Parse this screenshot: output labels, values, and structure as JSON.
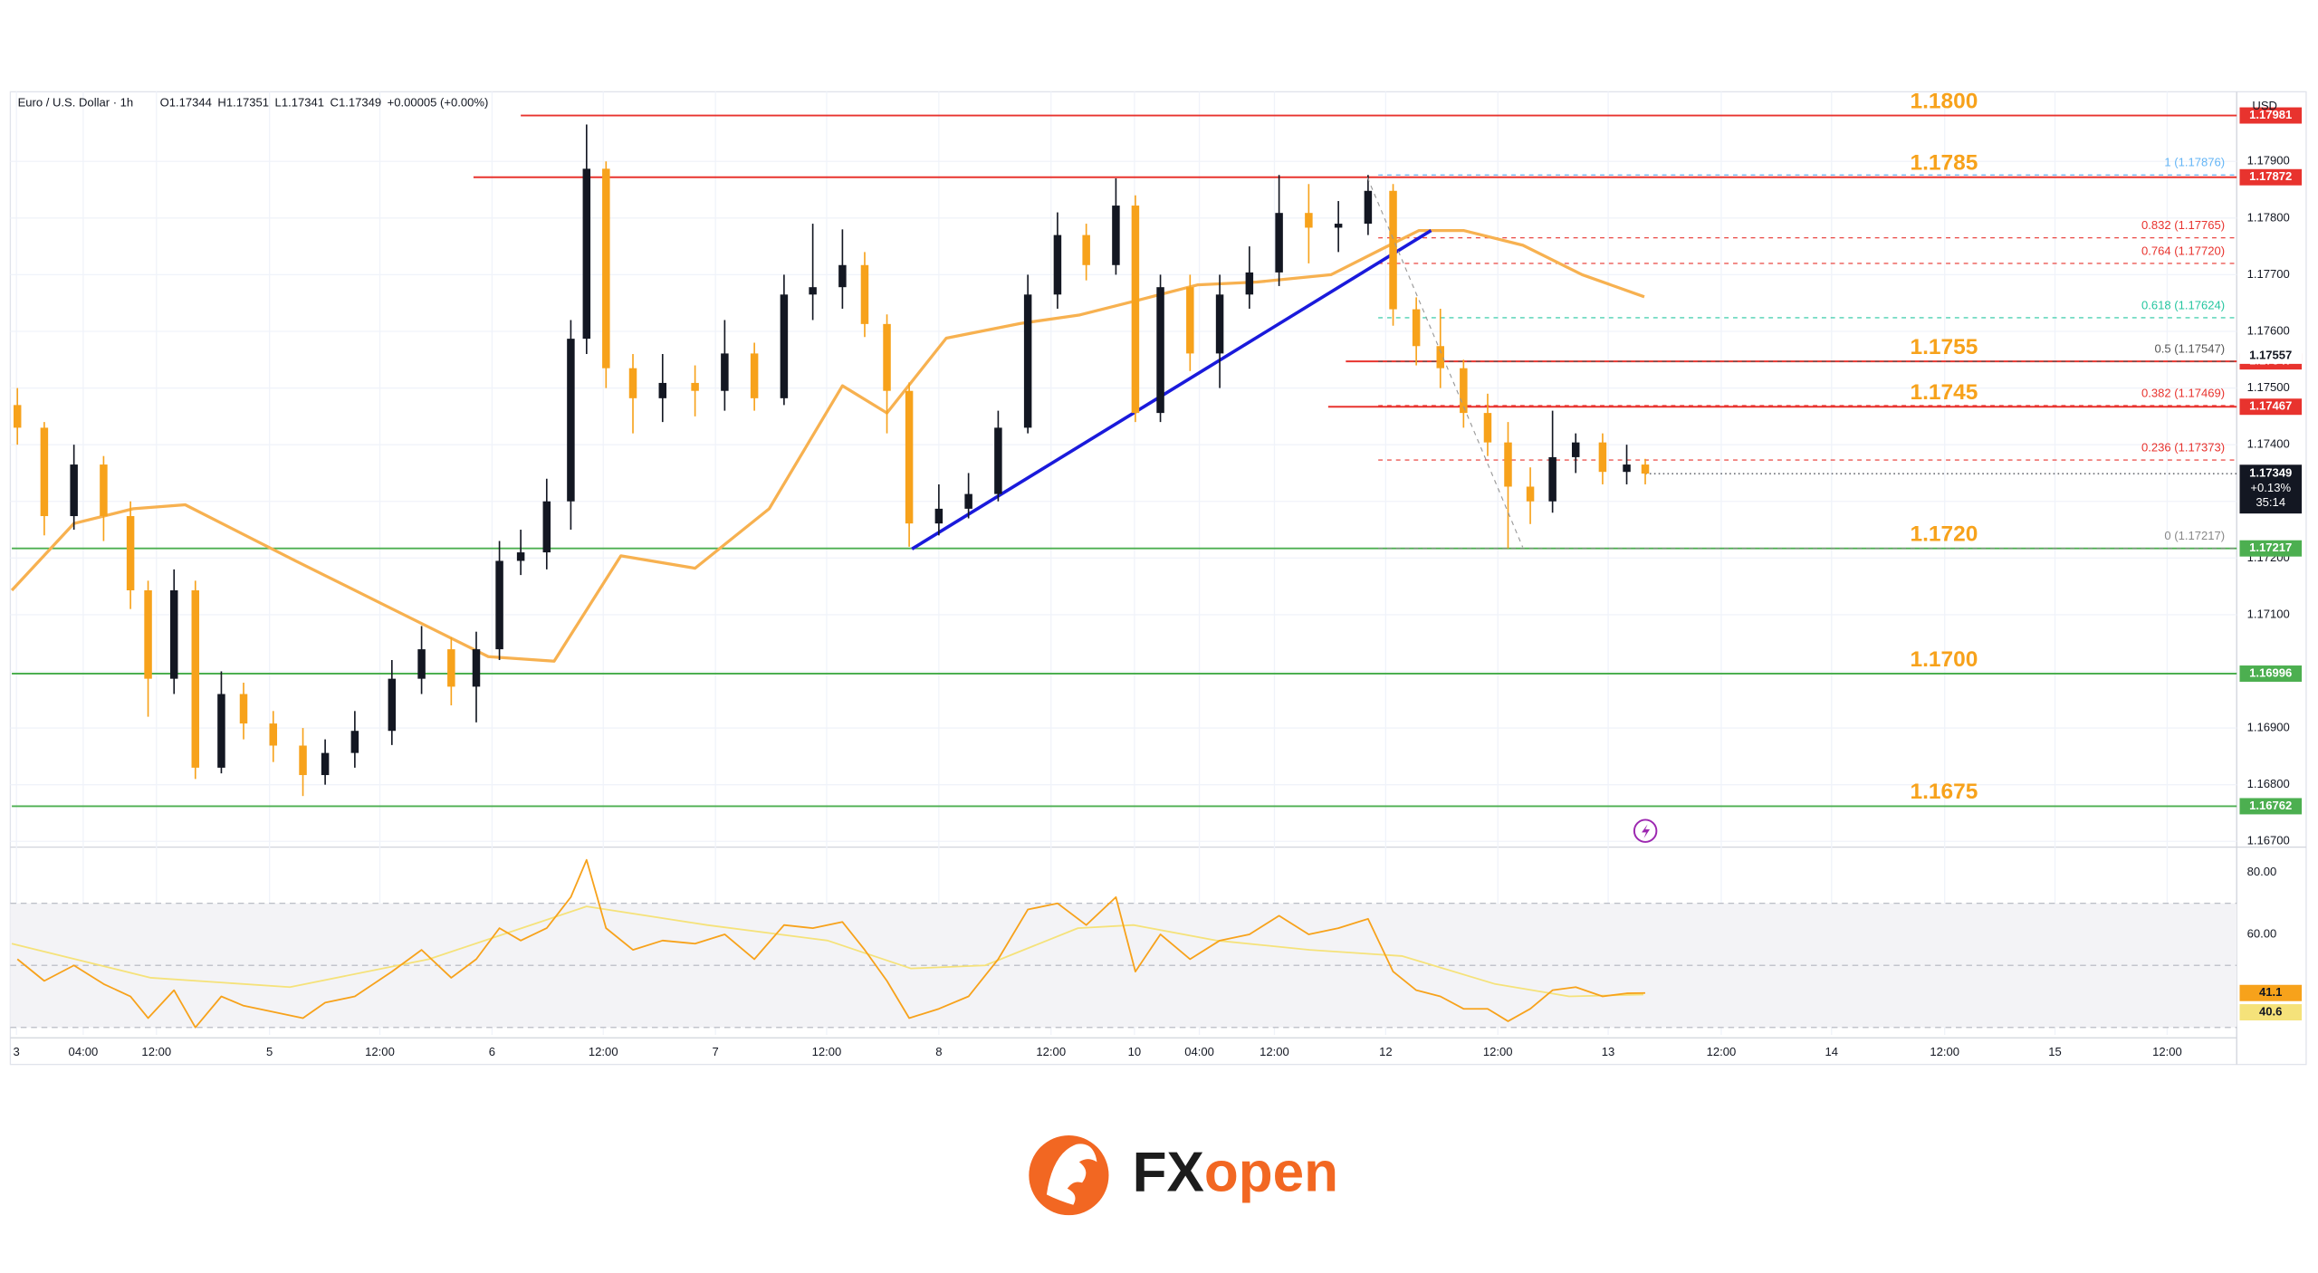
{
  "chart_data": {
    "type": "candlestick",
    "title": "Euro / U.S. Dollar · 1h",
    "ohlc": [
      "O1.17344",
      "H1.17351",
      "L1.17341",
      "C1.17349",
      "+0.00005 (+0.00%)"
    ],
    "currency": "USD",
    "xlim": [
      0,
      240
    ],
    "ylim": [
      1.16695,
      1.18015
    ],
    "grid": true,
    "xticks": [
      {
        "value": 0.5,
        "label": "3"
      },
      {
        "value": 7.7,
        "label": "04:00"
      },
      {
        "value": 15.6,
        "label": "12:00"
      },
      {
        "value": 27.8,
        "label": "5"
      },
      {
        "value": 39.7,
        "label": "12:00"
      },
      {
        "value": 51.8,
        "label": "6"
      },
      {
        "value": 63.8,
        "label": "12:00"
      },
      {
        "value": 75.9,
        "label": "7"
      },
      {
        "value": 87.9,
        "label": "12:00"
      },
      {
        "value": 100,
        "label": "8"
      },
      {
        "value": 112.1,
        "label": "12:00"
      },
      {
        "value": 121.1,
        "label": "10"
      },
      {
        "value": 128.1,
        "label": "04:00"
      },
      {
        "value": 136.2,
        "label": "12:00"
      },
      {
        "value": 148.2,
        "label": "12"
      },
      {
        "value": 160.3,
        "label": "12:00"
      },
      {
        "value": 172.2,
        "label": "13"
      },
      {
        "value": 184.4,
        "label": "12:00"
      },
      {
        "value": 196.3,
        "label": "14"
      },
      {
        "value": 208.5,
        "label": "12:00"
      },
      {
        "value": 220.4,
        "label": "15"
      },
      {
        "value": 232.5,
        "label": "12:00"
      }
    ],
    "yticks": [
      {
        "value": 1.179,
        "label": "1.17900"
      },
      {
        "value": 1.178,
        "label": "1.17800"
      },
      {
        "value": 1.177,
        "label": "1.17700"
      },
      {
        "value": 1.176,
        "label": "1.17600"
      },
      {
        "value": 1.175,
        "label": "1.17500"
      },
      {
        "value": 1.174,
        "label": "1.17400"
      },
      {
        "value": 1.173,
        "label": "1.17300"
      },
      {
        "value": 1.172,
        "label": "1.17200"
      },
      {
        "value": 1.171,
        "label": "1.17100"
      },
      {
        "value": 1.17,
        "label": "1.17000"
      },
      {
        "value": 1.169,
        "label": "1.16900"
      },
      {
        "value": 1.168,
        "label": "1.16800"
      },
      {
        "value": 1.167,
        "label": "1.16700"
      }
    ],
    "up_color": "#131722",
    "down_color": "#f7a21b",
    "candles": {
      "x": [
        0.6,
        3.5,
        6.7,
        9.9,
        12.8,
        14.7,
        17.5,
        19.8,
        22.6,
        25.0,
        28.2,
        31.4,
        33.8,
        37.0,
        41.0,
        44.2,
        47.4,
        50.1,
        52.6,
        54.9,
        57.7,
        60.3,
        62.0,
        64.1,
        67.0,
        70.2,
        73.7,
        76.9,
        80.1,
        83.3,
        86.4,
        89.6,
        92.0,
        94.4,
        96.8,
        100.0,
        103.2,
        106.4,
        109.6,
        112.8,
        115.9,
        119.1,
        121.2,
        123.9,
        127.1,
        130.3,
        133.5,
        136.7,
        139.9,
        143.1,
        146.3,
        149.0,
        151.5,
        154.1,
        156.6,
        159.2,
        161.4,
        163.8,
        166.2,
        168.7,
        171.6,
        174.2,
        176.2
      ],
      "open": [
        1.1747,
        1.1743,
        1.17274,
        1.17365,
        1.17274,
        1.17143,
        1.16987,
        1.17143,
        1.1683,
        1.1696,
        1.16908,
        1.16869,
        1.16817,
        1.16856,
        1.16895,
        1.16987,
        1.17039,
        1.16973,
        1.17039,
        1.17195,
        1.1721,
        1.173,
        1.17587,
        1.17887,
        1.17535,
        1.17482,
        1.17509,
        1.17495,
        1.17561,
        1.17482,
        1.17665,
        1.17678,
        1.17717,
        1.17613,
        1.17495,
        1.17261,
        1.17287,
        1.17313,
        1.1743,
        1.17665,
        1.1777,
        1.17717,
        1.17822,
        1.17456,
        1.17678,
        1.17561,
        1.17665,
        1.17704,
        1.17809,
        1.17783,
        1.1779,
        1.17848,
        1.17639,
        1.17574,
        1.17535,
        1.17456,
        1.17404,
        1.17326,
        1.173,
        1.17378,
        1.17404,
        1.17352,
        1.17365
      ],
      "high": [
        1.175,
        1.1744,
        1.174,
        1.1738,
        1.173,
        1.1716,
        1.1718,
        1.1716,
        1.17,
        1.1698,
        1.1693,
        1.169,
        1.1688,
        1.1693,
        1.1702,
        1.1708,
        1.1706,
        1.1707,
        1.1723,
        1.1725,
        1.1734,
        1.1762,
        1.17965,
        1.179,
        1.1756,
        1.1756,
        1.1754,
        1.1762,
        1.1758,
        1.177,
        1.1779,
        1.1778,
        1.1774,
        1.1763,
        1.1751,
        1.1733,
        1.1735,
        1.1746,
        1.177,
        1.1781,
        1.1779,
        1.1787,
        1.1784,
        1.177,
        1.177,
        1.177,
        1.1775,
        1.17876,
        1.1786,
        1.1783,
        1.17876,
        1.1786,
        1.1766,
        1.1764,
        1.1755,
        1.1749,
        1.1744,
        1.1736,
        1.1746,
        1.1742,
        1.1742,
        1.174,
        1.17375
      ],
      "low": [
        1.174,
        1.1724,
        1.1725,
        1.1723,
        1.1711,
        1.1692,
        1.1696,
        1.1681,
        1.1682,
        1.1688,
        1.1684,
        1.1678,
        1.168,
        1.1683,
        1.1687,
        1.1696,
        1.1694,
        1.1691,
        1.1702,
        1.1717,
        1.1718,
        1.1725,
        1.1756,
        1.175,
        1.1742,
        1.1744,
        1.1745,
        1.1746,
        1.1746,
        1.1747,
        1.1762,
        1.1764,
        1.1759,
        1.1742,
        1.1722,
        1.1724,
        1.1727,
        1.173,
        1.1742,
        1.1764,
        1.1769,
        1.177,
        1.1744,
        1.1744,
        1.1753,
        1.175,
        1.1764,
        1.1768,
        1.1772,
        1.1774,
        1.1777,
        1.1761,
        1.1754,
        1.175,
        1.1743,
        1.1738,
        1.17217,
        1.1726,
        1.1728,
        1.1735,
        1.1733,
        1.1733,
        1.1733
      ],
      "close": [
        1.1743,
        1.17274,
        1.17365,
        1.17274,
        1.17143,
        1.16987,
        1.17143,
        1.1683,
        1.1696,
        1.16908,
        1.16869,
        1.16817,
        1.16856,
        1.16895,
        1.16987,
        1.17039,
        1.16973,
        1.17039,
        1.17195,
        1.1721,
        1.173,
        1.17587,
        1.17887,
        1.17535,
        1.17482,
        1.17509,
        1.17495,
        1.17561,
        1.17482,
        1.17665,
        1.17678,
        1.17717,
        1.17613,
        1.17495,
        1.17261,
        1.17287,
        1.17313,
        1.1743,
        1.17665,
        1.1777,
        1.17717,
        1.17822,
        1.17456,
        1.17678,
        1.17561,
        1.17665,
        1.17704,
        1.17809,
        1.17783,
        1.1779,
        1.17848,
        1.17639,
        1.17574,
        1.17535,
        1.17456,
        1.17404,
        1.17326,
        1.173,
        1.17378,
        1.17404,
        1.17352,
        1.17365,
        1.17349
      ]
    },
    "ma": {
      "color": "#f7b150",
      "badge": 1.17557,
      "x": [
        0.0,
        6.7,
        13.1,
        18.7,
        30.6,
        40.2,
        51.4,
        58.5,
        65.7,
        73.7,
        81.7,
        89.6,
        94.4,
        100.8,
        108.8,
        115.2,
        121.5,
        127.9,
        134.3,
        142.3,
        148.6,
        151.8,
        156.6,
        163.0,
        169.4,
        176.1
      ],
      "values": [
        1.17143,
        1.17261,
        1.17287,
        1.17294,
        1.17195,
        1.17117,
        1.17026,
        1.17018,
        1.17204,
        1.17182,
        1.17287,
        1.17504,
        1.17456,
        1.17588,
        1.17614,
        1.17629,
        1.17655,
        1.17682,
        1.17687,
        1.177,
        1.17752,
        1.17778,
        1.17778,
        1.17752,
        1.177,
        1.17661
      ]
    },
    "trendline": {
      "color": "#1a1adb",
      "x": [
        97.1,
        153.1
      ],
      "values": [
        1.17216,
        1.17778
      ]
    },
    "levels": [
      {
        "label": "1.1800",
        "value": 1.17981,
        "from": 54.9,
        "color": "#e8332e"
      },
      {
        "label": "1.1785",
        "value": 1.17872,
        "from": 49.8,
        "color": "#e8332e"
      },
      {
        "label": "1.1755",
        "value": 1.17547,
        "from": 143.9,
        "color": "#e8332e"
      },
      {
        "label": "1.1745",
        "value": 1.17467,
        "from": 142.0,
        "color": "#e8332e"
      },
      {
        "label": "1.1720",
        "value": 1.17217,
        "from": 0,
        "color": "#4caf50"
      },
      {
        "label": "1.1700",
        "value": 1.16996,
        "from": 0,
        "color": "#4caf50"
      },
      {
        "label": "1.1675",
        "value": 1.16762,
        "from": 0,
        "color": "#4caf50"
      }
    ],
    "level_label_color": "#f7a21b",
    "fib": {
      "from": 147.4,
      "levels": [
        {
          "label": "1 (1.17876)",
          "value": 1.17876,
          "color": "#64b5f6"
        },
        {
          "label": "0.832 (1.17765)",
          "value": 1.17765,
          "color": "#e8332e"
        },
        {
          "label": "0.764 (1.17720)",
          "value": 1.1772,
          "color": "#e8332e"
        },
        {
          "label": "0.618 (1.17624)",
          "value": 1.17624,
          "color": "#26c6a0"
        },
        {
          "label": "0.5 (1.17547)",
          "value": 1.17547,
          "color": "#555555"
        },
        {
          "label": "0.382 (1.17469)",
          "value": 1.17469,
          "color": "#e8332e"
        },
        {
          "label": "0.236 (1.17373)",
          "value": 1.17373,
          "color": "#e8332e"
        },
        {
          "label": "0 (1.17217)",
          "value": 1.17217,
          "color": "#888888"
        }
      ]
    },
    "last_price": {
      "value": 1.17349,
      "change": "+0.13%",
      "countdown": "35:14"
    },
    "rsi": {
      "ylim": [
        27.6,
        86.2
      ],
      "bands": [
        70,
        50,
        30
      ],
      "yticks": [
        {
          "value": 80,
          "label": "80.00"
        },
        {
          "value": 60,
          "label": "60.00"
        }
      ],
      "color": "#f7a21b",
      "values": [
        52,
        45,
        50,
        44,
        40,
        33,
        42,
        30,
        40,
        37,
        35,
        33,
        38,
        40,
        48,
        55,
        46,
        52,
        62,
        58,
        62,
        72,
        84,
        62,
        55,
        58,
        57,
        60,
        52,
        63,
        62,
        64,
        55,
        45,
        33,
        36,
        40,
        52,
        68,
        70,
        63,
        72,
        48,
        60,
        52,
        58,
        60,
        66,
        60,
        62,
        65,
        48,
        42,
        40,
        36,
        36,
        32,
        36,
        42,
        43,
        40,
        41,
        41.1
      ],
      "ma": {
        "color": "#f5e27a",
        "x": [
          0,
          15,
          30,
          45,
          55,
          62,
          75,
          88,
          97,
          105,
          115,
          121,
          130,
          140,
          150,
          160,
          168,
          176
        ],
        "values": [
          57,
          46,
          43,
          52,
          62,
          69,
          63,
          58,
          49,
          50,
          62,
          63,
          58,
          55,
          53,
          44,
          40,
          40.6
        ]
      }
    }
  },
  "logo": {
    "parts": [
      "FX",
      "open"
    ]
  }
}
